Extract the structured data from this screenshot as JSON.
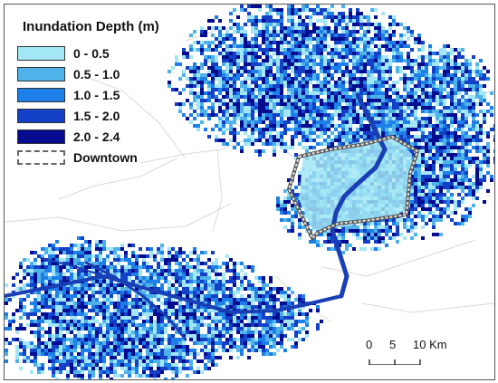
{
  "legend": {
    "title": "Inundation Depth (m)",
    "classes": [
      {
        "label": "0 - 0.5",
        "color": "#a3e6f5"
      },
      {
        "label": "0.5 - 1.0",
        "color": "#4fb3ea"
      },
      {
        "label": "1.0 - 1.5",
        "color": "#1d7fe8"
      },
      {
        "label": "1.5 - 2.0",
        "color": "#1340c6"
      },
      {
        "label": "2.0 - 2.4",
        "color": "#050c8f"
      }
    ],
    "boundary_label": "Downtown",
    "boundary_color": "#666666"
  },
  "scale": {
    "ticks": [
      "0",
      "5",
      "10 Km"
    ]
  },
  "colors": {
    "background": "#ffffff",
    "district_lines": "#d9d9d9",
    "river": "#1a3fb5"
  }
}
